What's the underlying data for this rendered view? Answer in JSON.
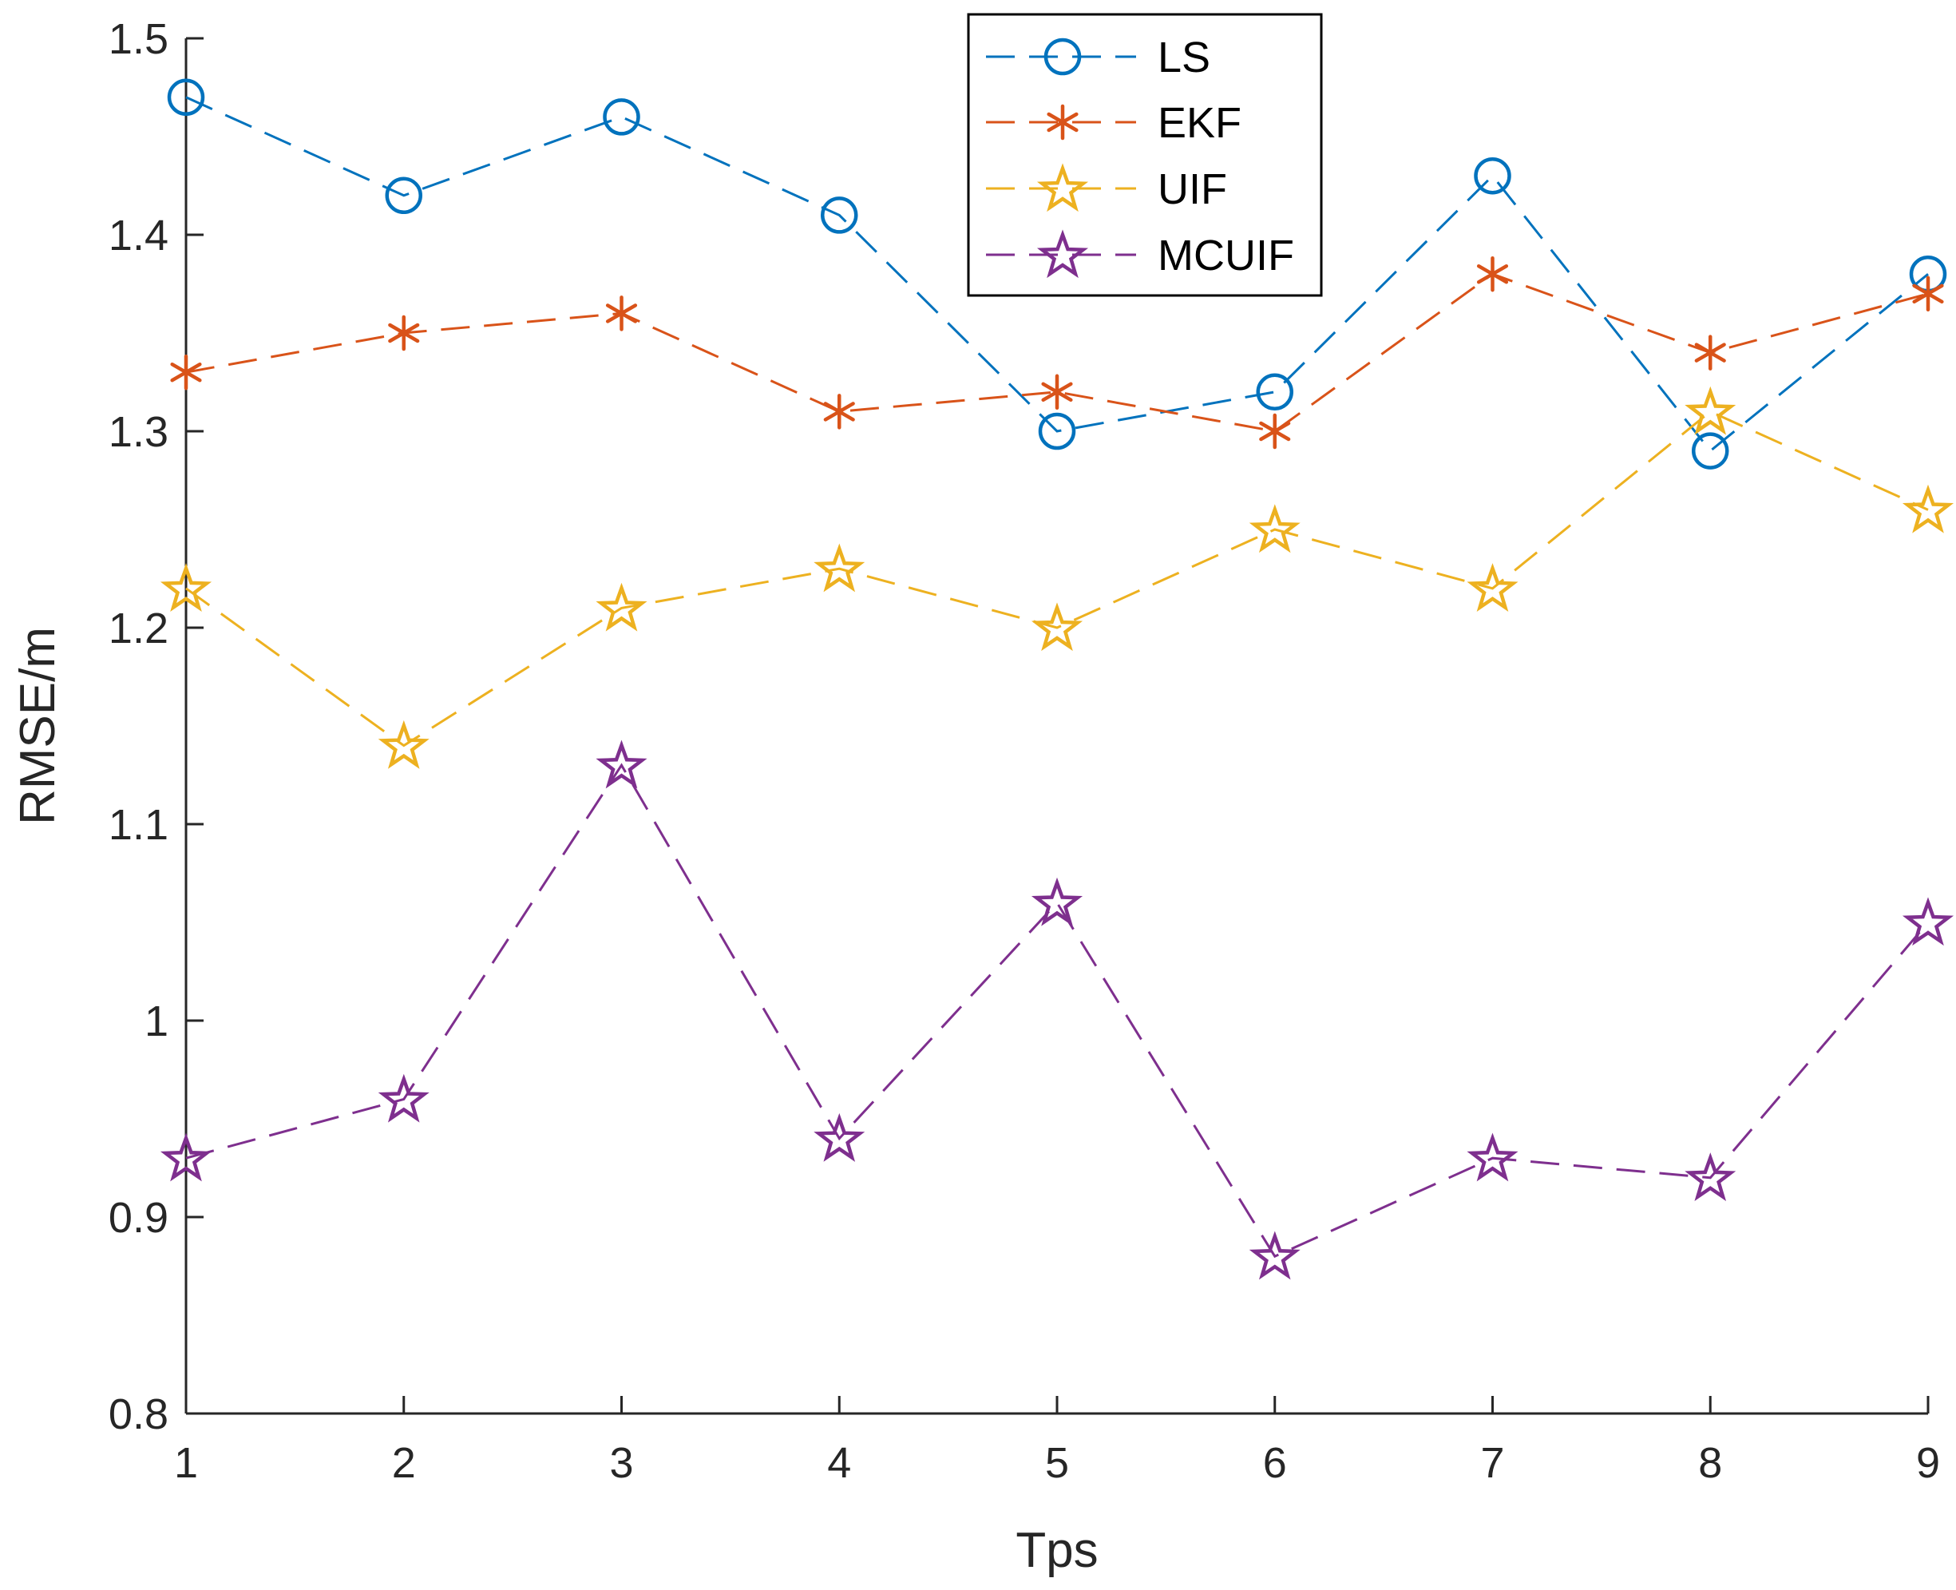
{
  "chart_data": {
    "type": "line",
    "title": "",
    "xlabel": "Tps",
    "ylabel": "RMSE/m",
    "x": [
      1,
      2,
      3,
      4,
      5,
      6,
      7,
      8,
      9
    ],
    "xlim": [
      1,
      9
    ],
    "ylim": [
      0.8,
      1.5
    ],
    "xticks": [
      1,
      2,
      3,
      4,
      5,
      6,
      7,
      8,
      9
    ],
    "yticks": [
      0.8,
      0.9,
      1,
      1.1,
      1.2,
      1.3,
      1.4,
      1.5
    ],
    "ytick_labels": [
      "0.8",
      "0.9",
      "1",
      "1.1",
      "1.2",
      "1.3",
      "1.4",
      "1.5"
    ],
    "grid": false,
    "legend_position": "top-center",
    "series": [
      {
        "name": "LS",
        "marker": "circle",
        "color": "#0072BD",
        "values": [
          1.47,
          1.42,
          1.46,
          1.41,
          1.3,
          1.32,
          1.43,
          1.29,
          1.38
        ]
      },
      {
        "name": "EKF",
        "marker": "asterisk",
        "color": "#D95319",
        "values": [
          1.33,
          1.35,
          1.36,
          1.31,
          1.32,
          1.3,
          1.38,
          1.34,
          1.37
        ]
      },
      {
        "name": "UIF",
        "marker": "star",
        "color": "#EDB120",
        "values": [
          1.22,
          1.14,
          1.21,
          1.23,
          1.2,
          1.25,
          1.22,
          1.31,
          1.26
        ]
      },
      {
        "name": "MCUIF",
        "marker": "star",
        "color": "#7E2F8E",
        "values": [
          0.93,
          0.96,
          1.13,
          0.94,
          1.06,
          0.88,
          0.93,
          0.92,
          1.05
        ]
      }
    ]
  }
}
